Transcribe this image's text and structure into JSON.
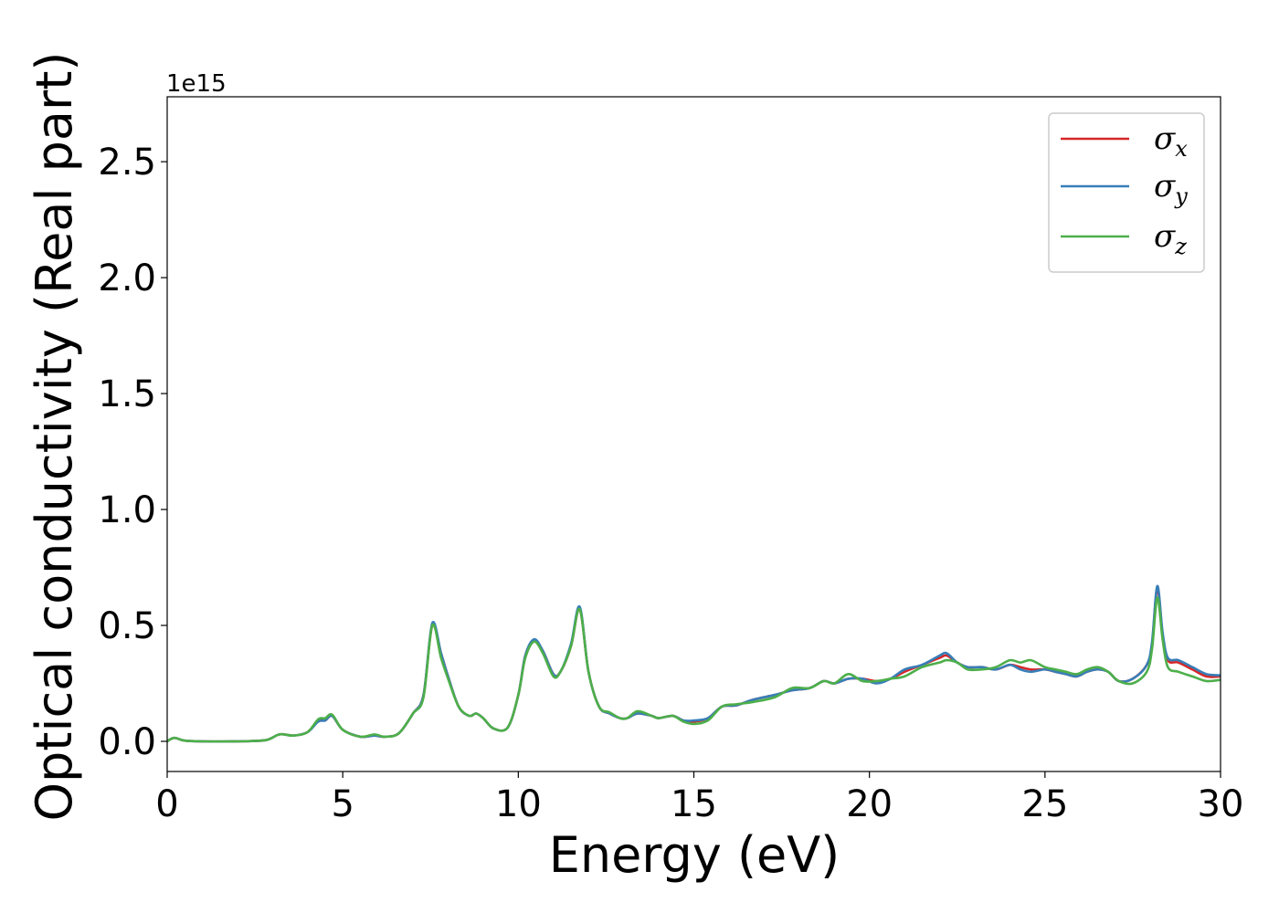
{
  "chart_data": {
    "type": "line",
    "title": "",
    "xlabel": "Energy (eV)",
    "ylabel": "Optical conductivity (Real part)",
    "y_offset_text": "1e15",
    "xlim": [
      0,
      30
    ],
    "ylim": [
      -0.13,
      2.78
    ],
    "xticks": [
      0,
      5,
      10,
      15,
      20,
      25,
      30
    ],
    "xtick_labels": [
      "0",
      "5",
      "10",
      "15",
      "20",
      "25",
      "30"
    ],
    "yticks": [
      0.0,
      0.5,
      1.0,
      1.5,
      2.0,
      2.5
    ],
    "ytick_labels": [
      "0.0",
      "0.5",
      "1.0",
      "1.5",
      "2.0",
      "2.5"
    ],
    "grid": false,
    "legend_position": "top-right",
    "x": [
      0,
      0.2,
      0.5,
      1,
      2,
      2.8,
      3.2,
      3.6,
      4.0,
      4.3,
      4.5,
      4.7,
      5.0,
      5.5,
      5.9,
      6.2,
      6.6,
      7.0,
      7.3,
      7.55,
      7.8,
      8.0,
      8.3,
      8.6,
      8.8,
      9.0,
      9.3,
      9.7,
      10.0,
      10.2,
      10.45,
      10.7,
      11.0,
      11.2,
      11.5,
      11.75,
      12.0,
      12.3,
      12.6,
      12.9,
      13.1,
      13.4,
      13.8,
      14.0,
      14.4,
      14.7,
      15.0,
      15.4,
      15.8,
      16.2,
      16.7,
      17.3,
      17.8,
      18.3,
      18.7,
      19.0,
      19.4,
      19.8,
      20.2,
      20.6,
      21.0,
      21.5,
      22.0,
      22.2,
      22.5,
      22.8,
      23.2,
      23.6,
      24.0,
      24.3,
      24.6,
      25.0,
      25.3,
      25.6,
      25.9,
      26.2,
      26.5,
      26.8,
      27.1,
      27.5,
      27.9,
      28.05,
      28.2,
      28.35,
      28.5,
      28.8,
      29.2,
      29.6,
      30.0
    ],
    "series": [
      {
        "name": "x",
        "color": "#d62728",
        "values": [
          0.0,
          0.015,
          0.003,
          0.0,
          0.0,
          0.005,
          0.03,
          0.025,
          0.04,
          0.09,
          0.09,
          0.11,
          0.05,
          0.02,
          0.025,
          0.02,
          0.035,
          0.12,
          0.2,
          0.5,
          0.38,
          0.28,
          0.15,
          0.11,
          0.12,
          0.1,
          0.055,
          0.06,
          0.2,
          0.37,
          0.43,
          0.39,
          0.29,
          0.3,
          0.41,
          0.57,
          0.3,
          0.15,
          0.12,
          0.1,
          0.1,
          0.12,
          0.11,
          0.1,
          0.11,
          0.09,
          0.085,
          0.1,
          0.15,
          0.155,
          0.18,
          0.2,
          0.22,
          0.23,
          0.26,
          0.25,
          0.27,
          0.27,
          0.26,
          0.27,
          0.3,
          0.33,
          0.36,
          0.37,
          0.34,
          0.32,
          0.32,
          0.31,
          0.33,
          0.32,
          0.31,
          0.31,
          0.3,
          0.29,
          0.28,
          0.3,
          0.31,
          0.3,
          0.26,
          0.27,
          0.33,
          0.42,
          0.66,
          0.46,
          0.35,
          0.34,
          0.31,
          0.28,
          0.28
        ]
      },
      {
        "name": "y",
        "color": "#377eb8",
        "values": [
          0.0,
          0.015,
          0.003,
          0.0,
          0.0,
          0.005,
          0.03,
          0.025,
          0.04,
          0.085,
          0.09,
          0.11,
          0.05,
          0.02,
          0.025,
          0.02,
          0.035,
          0.12,
          0.2,
          0.51,
          0.38,
          0.28,
          0.15,
          0.11,
          0.12,
          0.1,
          0.055,
          0.06,
          0.2,
          0.37,
          0.44,
          0.39,
          0.29,
          0.3,
          0.42,
          0.58,
          0.3,
          0.15,
          0.12,
          0.1,
          0.1,
          0.12,
          0.11,
          0.1,
          0.11,
          0.09,
          0.09,
          0.1,
          0.15,
          0.155,
          0.18,
          0.2,
          0.22,
          0.23,
          0.26,
          0.25,
          0.27,
          0.27,
          0.25,
          0.27,
          0.31,
          0.33,
          0.37,
          0.38,
          0.34,
          0.32,
          0.32,
          0.31,
          0.33,
          0.31,
          0.3,
          0.31,
          0.3,
          0.29,
          0.28,
          0.3,
          0.31,
          0.3,
          0.26,
          0.27,
          0.33,
          0.43,
          0.67,
          0.47,
          0.36,
          0.35,
          0.32,
          0.29,
          0.285
        ]
      },
      {
        "name": "z",
        "color": "#4daf4a",
        "values": [
          0.0,
          0.015,
          0.003,
          0.0,
          0.0,
          0.005,
          0.03,
          0.025,
          0.04,
          0.095,
          0.1,
          0.115,
          0.05,
          0.02,
          0.03,
          0.02,
          0.035,
          0.12,
          0.19,
          0.5,
          0.36,
          0.27,
          0.15,
          0.11,
          0.12,
          0.1,
          0.055,
          0.06,
          0.2,
          0.36,
          0.43,
          0.38,
          0.28,
          0.3,
          0.41,
          0.57,
          0.3,
          0.15,
          0.125,
          0.1,
          0.1,
          0.13,
          0.11,
          0.1,
          0.11,
          0.085,
          0.075,
          0.09,
          0.15,
          0.16,
          0.17,
          0.19,
          0.23,
          0.23,
          0.26,
          0.25,
          0.29,
          0.26,
          0.26,
          0.27,
          0.28,
          0.32,
          0.34,
          0.35,
          0.34,
          0.31,
          0.31,
          0.32,
          0.35,
          0.34,
          0.35,
          0.32,
          0.31,
          0.3,
          0.29,
          0.31,
          0.32,
          0.3,
          0.26,
          0.25,
          0.3,
          0.4,
          0.62,
          0.44,
          0.32,
          0.3,
          0.28,
          0.26,
          0.265
        ]
      }
    ]
  }
}
